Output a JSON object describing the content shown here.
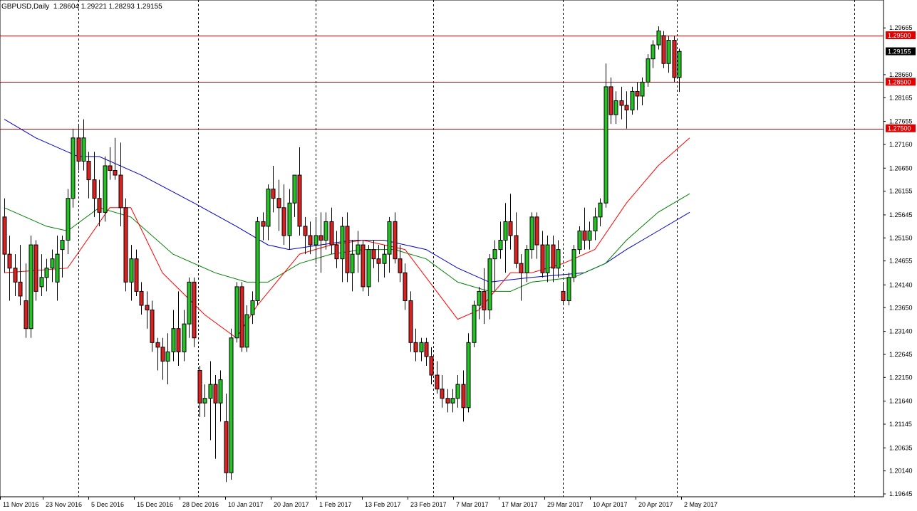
{
  "header": {
    "symbol": "GBPUSD,Daily",
    "ohlc": "1.28604 1.29221 1.28293 1.29155"
  },
  "chart_data": {
    "type": "candlestick",
    "title": "GBPUSD,Daily",
    "ylim": [
      1.19645,
      1.2999
    ],
    "price_labels": [
      "1.29665",
      "1.28660",
      "1.28165",
      "1.27655",
      "1.27160",
      "1.26650",
      "1.26155",
      "1.25645",
      "1.25150",
      "1.24655",
      "1.24140",
      "1.23650",
      "1.23140",
      "1.22645",
      "1.22150",
      "1.21640",
      "1.21145",
      "1.20635",
      "1.20140",
      "1.19645"
    ],
    "date_labels": [
      "11 Nov 2016",
      "23 Nov 2016",
      "5 Dec 2016",
      "15 Dec 2016",
      "28 Dec 2016",
      "10 Jan 2017",
      "20 Jan 2017",
      "1 Feb 2017",
      "13 Feb 2017",
      "23 Feb 2017",
      "7 Mar 2017",
      "17 Mar 2017",
      "29 Mar 2017",
      "10 Apr 2017",
      "20 Apr 2017",
      "2 May 2017"
    ],
    "horizontal_levels": [
      {
        "label": "1.29500",
        "value": 1.295
      },
      {
        "label": "1.28500",
        "value": 1.285
      },
      {
        "label": "1.27500",
        "value": 1.275
      }
    ],
    "current_price": {
      "label": "1.29155",
      "value": 1.29155
    },
    "series_colors": {
      "up": "#22c322",
      "down": "#dd2020",
      "level": "#e00000",
      "ma_fast": "#ff0000",
      "ma_mid": "#008000",
      "ma_slow": "#0000cc"
    },
    "candles": [
      [
        1.256,
        1.26,
        1.244,
        1.248
      ],
      [
        1.248,
        1.252,
        1.238,
        1.245
      ],
      [
        1.245,
        1.248,
        1.239,
        1.242
      ],
      [
        1.242,
        1.25,
        1.237,
        1.239
      ],
      [
        1.238,
        1.246,
        1.23,
        1.232
      ],
      [
        1.232,
        1.252,
        1.23,
        1.25
      ],
      [
        1.25,
        1.251,
        1.238,
        1.24
      ],
      [
        1.241,
        1.248,
        1.239,
        1.243
      ],
      [
        1.243,
        1.247,
        1.24,
        1.245
      ],
      [
        1.245,
        1.249,
        1.242,
        1.247
      ],
      [
        1.242,
        1.252,
        1.238,
        1.248
      ],
      [
        1.249,
        1.252,
        1.243,
        1.251
      ],
      [
        1.251,
        1.262,
        1.248,
        1.26
      ],
      [
        1.26,
        1.275,
        1.258,
        1.273
      ],
      [
        1.273,
        1.276,
        1.266,
        1.268
      ],
      [
        1.268,
        1.277,
        1.266,
        1.273
      ],
      [
        1.268,
        1.27,
        1.26,
        1.264
      ],
      [
        1.264,
        1.27,
        1.256,
        1.26
      ],
      [
        1.26,
        1.264,
        1.254,
        1.257
      ],
      [
        1.257,
        1.269,
        1.255,
        1.267
      ],
      [
        1.267,
        1.271,
        1.264,
        1.266
      ],
      [
        1.266,
        1.273,
        1.264,
        1.265
      ],
      [
        1.265,
        1.272,
        1.254,
        1.258
      ],
      [
        1.258,
        1.26,
        1.24,
        1.242
      ],
      [
        1.242,
        1.25,
        1.238,
        1.247
      ],
      [
        1.247,
        1.249,
        1.239,
        1.24
      ],
      [
        1.24,
        1.242,
        1.235,
        1.237
      ],
      [
        1.237,
        1.24,
        1.232,
        1.236
      ],
      [
        1.236,
        1.238,
        1.227,
        1.229
      ],
      [
        1.229,
        1.23,
        1.223,
        1.228
      ],
      [
        1.228,
        1.23,
        1.221,
        1.225
      ],
      [
        1.225,
        1.231,
        1.22,
        1.227
      ],
      [
        1.227,
        1.236,
        1.225,
        1.232
      ],
      [
        1.232,
        1.24,
        1.224,
        1.227
      ],
      [
        1.227,
        1.236,
        1.225,
        1.233
      ],
      [
        1.233,
        1.243,
        1.23,
        1.242
      ],
      [
        1.242,
        1.243,
        1.228,
        1.23
      ],
      [
        1.223,
        1.224,
        1.213,
        1.216
      ],
      [
        1.216,
        1.22,
        1.213,
        1.217
      ],
      [
        1.217,
        1.225,
        1.208,
        1.22
      ],
      [
        1.22,
        1.222,
        1.204,
        1.216
      ],
      [
        1.216,
        1.223,
        1.212,
        1.221
      ],
      [
        1.212,
        1.218,
        1.199,
        1.201
      ],
      [
        1.201,
        1.232,
        1.1995,
        1.23
      ],
      [
        1.23,
        1.242,
        1.229,
        1.241
      ],
      [
        1.241,
        1.242,
        1.227,
        1.228
      ],
      [
        1.228,
        1.237,
        1.227,
        1.235
      ],
      [
        1.235,
        1.24,
        1.233,
        1.238
      ],
      [
        1.238,
        1.256,
        1.237,
        1.255
      ],
      [
        1.255,
        1.257,
        1.251,
        1.254
      ],
      [
        1.254,
        1.263,
        1.251,
        1.262
      ],
      [
        1.262,
        1.267,
        1.257,
        1.26
      ],
      [
        1.26,
        1.264,
        1.253,
        1.258
      ],
      [
        1.258,
        1.263,
        1.25,
        1.252
      ],
      [
        1.252,
        1.262,
        1.249,
        1.259
      ],
      [
        1.259,
        1.265,
        1.256,
        1.265
      ],
      [
        1.265,
        1.271,
        1.252,
        1.254
      ],
      [
        1.254,
        1.256,
        1.248,
        1.252
      ],
      [
        1.252,
        1.255,
        1.248,
        1.25
      ],
      [
        1.25,
        1.256,
        1.246,
        1.252
      ],
      [
        1.252,
        1.257,
        1.244,
        1.251
      ],
      [
        1.251,
        1.257,
        1.249,
        1.255
      ],
      [
        1.255,
        1.258,
        1.248,
        1.25
      ],
      [
        1.25,
        1.253,
        1.245,
        1.247
      ],
      [
        1.247,
        1.256,
        1.242,
        1.254
      ],
      [
        1.254,
        1.257,
        1.242,
        1.244
      ],
      [
        1.244,
        1.251,
        1.24,
        1.248
      ],
      [
        1.248,
        1.253,
        1.244,
        1.25
      ],
      [
        1.25,
        1.251,
        1.24,
        1.241
      ],
      [
        1.241,
        1.25,
        1.239,
        1.249
      ],
      [
        1.249,
        1.251,
        1.245,
        1.247
      ],
      [
        1.247,
        1.25,
        1.242,
        1.246
      ],
      [
        1.246,
        1.25,
        1.243,
        1.248
      ],
      [
        1.248,
        1.256,
        1.244,
        1.255
      ],
      [
        1.255,
        1.257,
        1.246,
        1.247
      ],
      [
        1.247,
        1.25,
        1.242,
        1.244
      ],
      [
        1.244,
        1.246,
        1.236,
        1.238
      ],
      [
        1.238,
        1.24,
        1.227,
        1.229
      ],
      [
        1.229,
        1.232,
        1.225,
        1.227
      ],
      [
        1.227,
        1.23,
        1.225,
        1.229
      ],
      [
        1.229,
        1.23,
        1.224,
        1.226
      ],
      [
        1.226,
        1.228,
        1.22,
        1.222
      ],
      [
        1.222,
        1.225,
        1.218,
        1.219
      ],
      [
        1.219,
        1.222,
        1.215,
        1.217
      ],
      [
        1.217,
        1.219,
        1.214,
        1.216
      ],
      [
        1.216,
        1.219,
        1.214,
        1.217
      ],
      [
        1.217,
        1.222,
        1.215,
        1.22
      ],
      [
        1.22,
        1.223,
        1.212,
        1.215
      ],
      [
        1.215,
        1.231,
        1.214,
        1.229
      ],
      [
        1.229,
        1.238,
        1.228,
        1.237
      ],
      [
        1.237,
        1.241,
        1.234,
        1.24
      ],
      [
        1.24,
        1.245,
        1.233,
        1.236
      ],
      [
        1.236,
        1.248,
        1.234,
        1.247
      ],
      [
        1.247,
        1.251,
        1.24,
        1.249
      ],
      [
        1.249,
        1.255,
        1.247,
        1.251
      ],
      [
        1.251,
        1.259,
        1.244,
        1.255
      ],
      [
        1.255,
        1.261,
        1.249,
        1.252
      ],
      [
        1.252,
        1.257,
        1.245,
        1.246
      ],
      [
        1.246,
        1.248,
        1.238,
        1.244
      ],
      [
        1.244,
        1.25,
        1.242,
        1.249
      ],
      [
        1.249,
        1.257,
        1.247,
        1.256
      ],
      [
        1.256,
        1.257,
        1.247,
        1.25
      ],
      [
        1.25,
        1.253,
        1.243,
        1.244
      ],
      [
        1.244,
        1.252,
        1.242,
        1.25
      ],
      [
        1.25,
        1.252,
        1.242,
        1.245
      ],
      [
        1.245,
        1.251,
        1.243,
        1.249
      ],
      [
        1.24,
        1.242,
        1.237,
        1.238
      ],
      [
        1.238,
        1.244,
        1.237,
        1.243
      ],
      [
        1.243,
        1.25,
        1.242,
        1.249
      ],
      [
        1.249,
        1.254,
        1.248,
        1.253
      ],
      [
        1.253,
        1.258,
        1.249,
        1.251
      ],
      [
        1.251,
        1.255,
        1.249,
        1.253
      ],
      [
        1.253,
        1.258,
        1.251,
        1.256
      ],
      [
        1.256,
        1.26,
        1.254,
        1.259
      ],
      [
        1.259,
        1.289,
        1.258,
        1.284
      ],
      [
        1.284,
        1.286,
        1.276,
        1.278
      ],
      [
        1.278,
        1.283,
        1.276,
        1.281
      ],
      [
        1.281,
        1.284,
        1.277,
        1.28
      ],
      [
        1.28,
        1.283,
        1.275,
        1.279
      ],
      [
        1.279,
        1.284,
        1.278,
        1.283
      ],
      [
        1.283,
        1.285,
        1.279,
        1.282
      ],
      [
        1.282,
        1.286,
        1.28,
        1.285
      ],
      [
        1.285,
        1.291,
        1.284,
        1.29
      ],
      [
        1.29,
        1.294,
        1.288,
        1.293
      ],
      [
        1.293,
        1.297,
        1.292,
        1.296
      ],
      [
        1.295,
        1.296,
        1.288,
        1.289
      ],
      [
        1.289,
        1.295,
        1.287,
        1.294
      ],
      [
        1.294,
        1.295,
        1.285,
        1.286
      ],
      [
        1.286,
        1.2922,
        1.2829,
        1.2916
      ]
    ],
    "ma_fast": [
      [
        0,
        1.244
      ],
      [
        12,
        1.245
      ],
      [
        20,
        1.258
      ],
      [
        24,
        1.258
      ],
      [
        30,
        1.244
      ],
      [
        38,
        1.235
      ],
      [
        44,
        1.23
      ],
      [
        48,
        1.237
      ],
      [
        56,
        1.248
      ],
      [
        62,
        1.25
      ],
      [
        68,
        1.251
      ],
      [
        76,
        1.249
      ],
      [
        86,
        1.234
      ],
      [
        90,
        1.236
      ],
      [
        96,
        1.244
      ],
      [
        100,
        1.244
      ],
      [
        106,
        1.246
      ],
      [
        112,
        1.249
      ],
      [
        118,
        1.259
      ],
      [
        124,
        1.267
      ],
      [
        130,
        1.273
      ]
    ],
    "ma_mid": [
      [
        0,
        1.258
      ],
      [
        8,
        1.254
      ],
      [
        12,
        1.253
      ],
      [
        18,
        1.258
      ],
      [
        24,
        1.256
      ],
      [
        32,
        1.248
      ],
      [
        40,
        1.244
      ],
      [
        46,
        1.242
      ],
      [
        50,
        1.242
      ],
      [
        56,
        1.246
      ],
      [
        62,
        1.248
      ],
      [
        68,
        1.249
      ],
      [
        74,
        1.249
      ],
      [
        80,
        1.247
      ],
      [
        86,
        1.242
      ],
      [
        92,
        1.24
      ],
      [
        96,
        1.24
      ],
      [
        100,
        1.242
      ],
      [
        108,
        1.243
      ],
      [
        114,
        1.246
      ],
      [
        118,
        1.251
      ],
      [
        124,
        1.257
      ],
      [
        130,
        1.261
      ]
    ],
    "ma_slow": [
      [
        0,
        1.277
      ],
      [
        6,
        1.273
      ],
      [
        14,
        1.269
      ],
      [
        18,
        1.269
      ],
      [
        26,
        1.265
      ],
      [
        36,
        1.259
      ],
      [
        44,
        1.254
      ],
      [
        50,
        1.25
      ],
      [
        54,
        1.249
      ],
      [
        60,
        1.25
      ],
      [
        66,
        1.251
      ],
      [
        72,
        1.251
      ],
      [
        80,
        1.249
      ],
      [
        86,
        1.245
      ],
      [
        92,
        1.242
      ],
      [
        100,
        1.243
      ],
      [
        110,
        1.244
      ],
      [
        114,
        1.246
      ],
      [
        118,
        1.249
      ],
      [
        124,
        1.253
      ],
      [
        130,
        1.257
      ]
    ]
  }
}
